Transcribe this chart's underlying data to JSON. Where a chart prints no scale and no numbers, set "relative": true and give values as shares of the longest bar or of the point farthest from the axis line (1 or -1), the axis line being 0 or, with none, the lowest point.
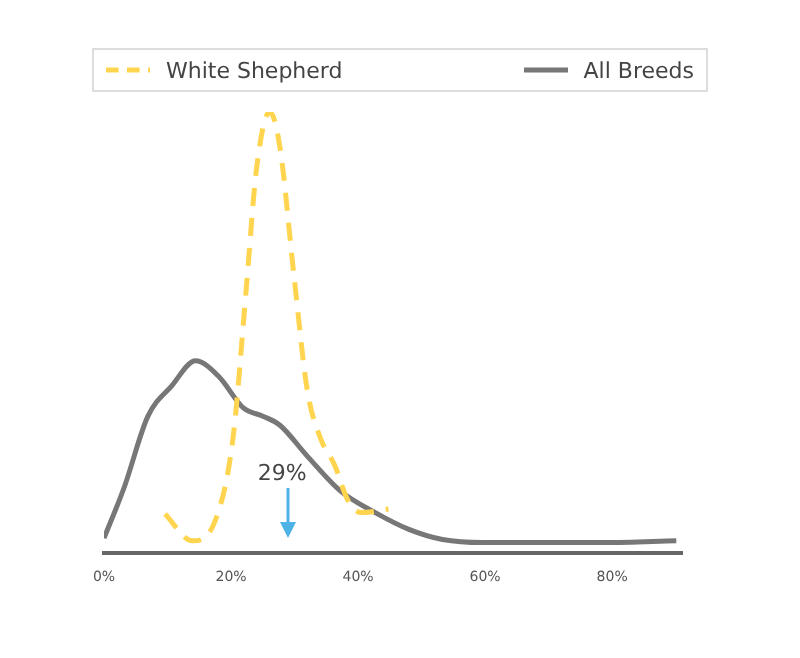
{
  "chart_data": {
    "type": "line",
    "relative": true,
    "legend": "top",
    "grid": false,
    "marker": "none",
    "xlim": [
      0,
      91
    ],
    "xticks": [
      {
        "value": 0,
        "label": "0%"
      },
      {
        "value": 20,
        "label": "20%"
      },
      {
        "value": 40,
        "label": "40%"
      },
      {
        "value": 60,
        "label": "60%"
      },
      {
        "value": 80,
        "label": "80%"
      }
    ],
    "ref_lines": [
      {
        "axis": "x",
        "value": 29,
        "label": "29%",
        "color": "#4fb3e8"
      }
    ],
    "series": [
      {
        "name": "White Shepherd",
        "color": "#ffd54f",
        "line_style": "dashed",
        "x": [
          9.6,
          13.9,
          17.6,
          20.3,
          22.4,
          24.0,
          26.1,
          27.7,
          29.9,
          32.0,
          34.1,
          36.3,
          38.4,
          40.5,
          44.8
        ],
        "values": [
          0.089,
          0.028,
          0.077,
          0.26,
          0.6,
          0.87,
          1.0,
          0.92,
          0.63,
          0.37,
          0.26,
          0.2,
          0.12,
          0.092,
          0.1
        ]
      },
      {
        "name": "All Breeds",
        "color": "#777777",
        "line_style": "solid",
        "x": [
          0,
          3.2,
          6.9,
          10.7,
          14.4,
          18.1,
          21.9,
          25.1,
          27.7,
          32.0,
          37.3,
          42.7,
          48.0,
          53.3,
          59.7,
          78.9,
          90.1
        ],
        "values": [
          0.034,
          0.15,
          0.31,
          0.38,
          0.436,
          0.4,
          0.33,
          0.31,
          0.29,
          0.22,
          0.14,
          0.092,
          0.054,
          0.031,
          0.024,
          0.024,
          0.028
        ]
      }
    ]
  }
}
